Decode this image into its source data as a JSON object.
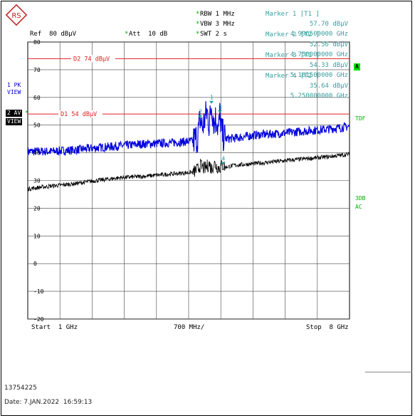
{
  "header": {
    "ref": "Ref  80 dBµV",
    "att_star": "*",
    "att": "Att  10 dB",
    "rbw_star": "*",
    "rbw": "RBW 1 MHz",
    "vbw_star": "*",
    "vbw": "VBW 3 MHz",
    "swt_star": "*",
    "swt": "SWT 2 s",
    "logo": "RS"
  },
  "markers": [
    {
      "label": "Marker 1 [T1 ]",
      "value": "57.70 dBµV",
      "freq": "4.996500000 GHz"
    },
    {
      "label": "Marker 2 [T2 ]",
      "value": "52.56 dBµV",
      "freq": "4.750000000 GHz"
    },
    {
      "label": "Marker 3 [T1 ]",
      "value": "54.33 dBµV",
      "freq": "5.181500000 GHz"
    },
    {
      "label": "Marker 4 [T2 ]",
      "value": "35.64 dBµV",
      "freq": "5.250000000 GHz"
    }
  ],
  "side": {
    "trace1": "1 PK",
    "trace1b": "VIEW",
    "trace2": "2 AV",
    "trace2b": "VIEW",
    "a_badge": "A",
    "tdf": "TDF",
    "db3": "3DB",
    "ac": "AC"
  },
  "footer": {
    "start": "Start  1 GHz",
    "div": "700 MHz/",
    "stop": "Stop  8 GHz",
    "id": "13754225",
    "date": "Date: 7.JAN.2022  16:59:13"
  },
  "chart_data": {
    "type": "line",
    "xlabel": "",
    "ylabel": "",
    "x_unit": "GHz",
    "y_unit": "dBµV",
    "xlim": [
      1,
      8
    ],
    "ylim": [
      -20,
      80
    ],
    "y_ticks": [
      80,
      70,
      60,
      50,
      40,
      30,
      20,
      10,
      0,
      -10,
      -20
    ],
    "grid": true,
    "limit_lines": [
      {
        "name": "D2",
        "label": "D2 74 dBµV",
        "value": 74,
        "color": "#e02020"
      },
      {
        "name": "D1",
        "label": "D1 54 dBµV",
        "value": 54,
        "color": "#e02020"
      }
    ],
    "series": [
      {
        "trace": "1 PK",
        "color": "#0000dd",
        "x": [
          1.0,
          1.5,
          2.0,
          2.5,
          3.0,
          3.5,
          4.0,
          4.6,
          4.7,
          4.75,
          4.8,
          4.9,
          4.95,
          5.0,
          5.05,
          5.1,
          5.15,
          5.18,
          5.22,
          5.3,
          5.5,
          6.0,
          6.5,
          7.0,
          7.5,
          8.0
        ],
        "y": [
          40.5,
          40.5,
          41.0,
          41.8,
          42.5,
          43.2,
          43.5,
          44.2,
          46.0,
          52.5,
          49.0,
          55.0,
          50.0,
          57.7,
          51.0,
          53.0,
          48.0,
          54.3,
          47.0,
          45.0,
          45.3,
          46.5,
          47.0,
          47.8,
          48.5,
          49.5
        ]
      },
      {
        "trace": "2 AV",
        "color": "#000000",
        "x": [
          1.0,
          1.5,
          2.0,
          2.5,
          3.0,
          3.5,
          4.0,
          4.6,
          4.7,
          4.75,
          4.85,
          4.95,
          5.0,
          5.05,
          5.15,
          5.25,
          5.3,
          5.5,
          6.0,
          6.5,
          7.0,
          7.5,
          8.0
        ],
        "y": [
          27.0,
          28.0,
          28.8,
          30.0,
          31.0,
          31.5,
          32.2,
          33.0,
          34.0,
          35.5,
          34.2,
          36.0,
          34.0,
          36.2,
          34.5,
          35.6,
          34.8,
          35.5,
          36.2,
          37.0,
          37.8,
          38.5,
          39.5
        ]
      }
    ],
    "marker_points": [
      {
        "label": "1",
        "x": 4.9965,
        "y": 57.7
      },
      {
        "label": "2",
        "x": 4.75,
        "y": 52.56
      },
      {
        "label": "3",
        "x": 5.1815,
        "y": 54.33
      },
      {
        "label": "4",
        "x": 5.25,
        "y": 35.64
      }
    ]
  }
}
